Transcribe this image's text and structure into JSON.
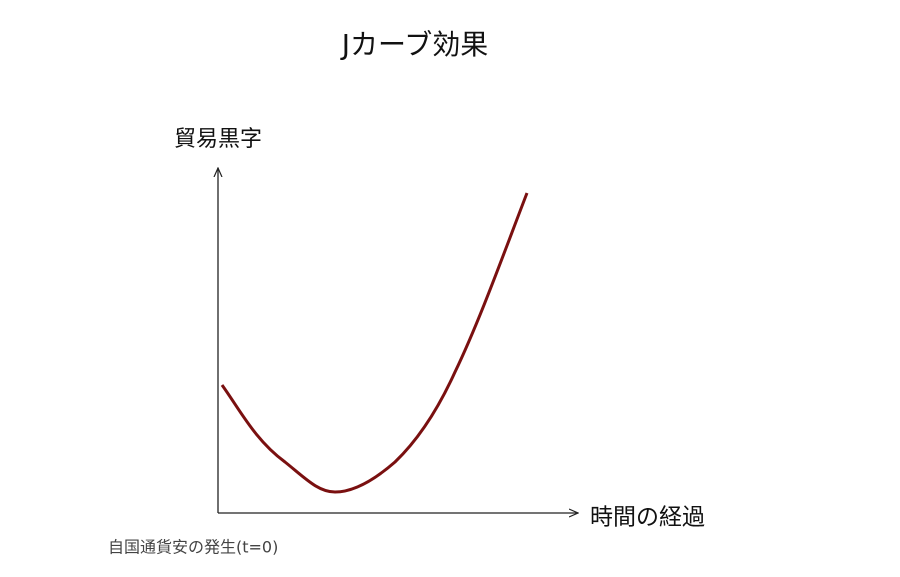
{
  "title": "Jカーブ効果",
  "y_axis_label": "貿易黒字",
  "x_axis_label": "時間の経過",
  "origin_note": "自国通貨安の発生(t=0)"
}
